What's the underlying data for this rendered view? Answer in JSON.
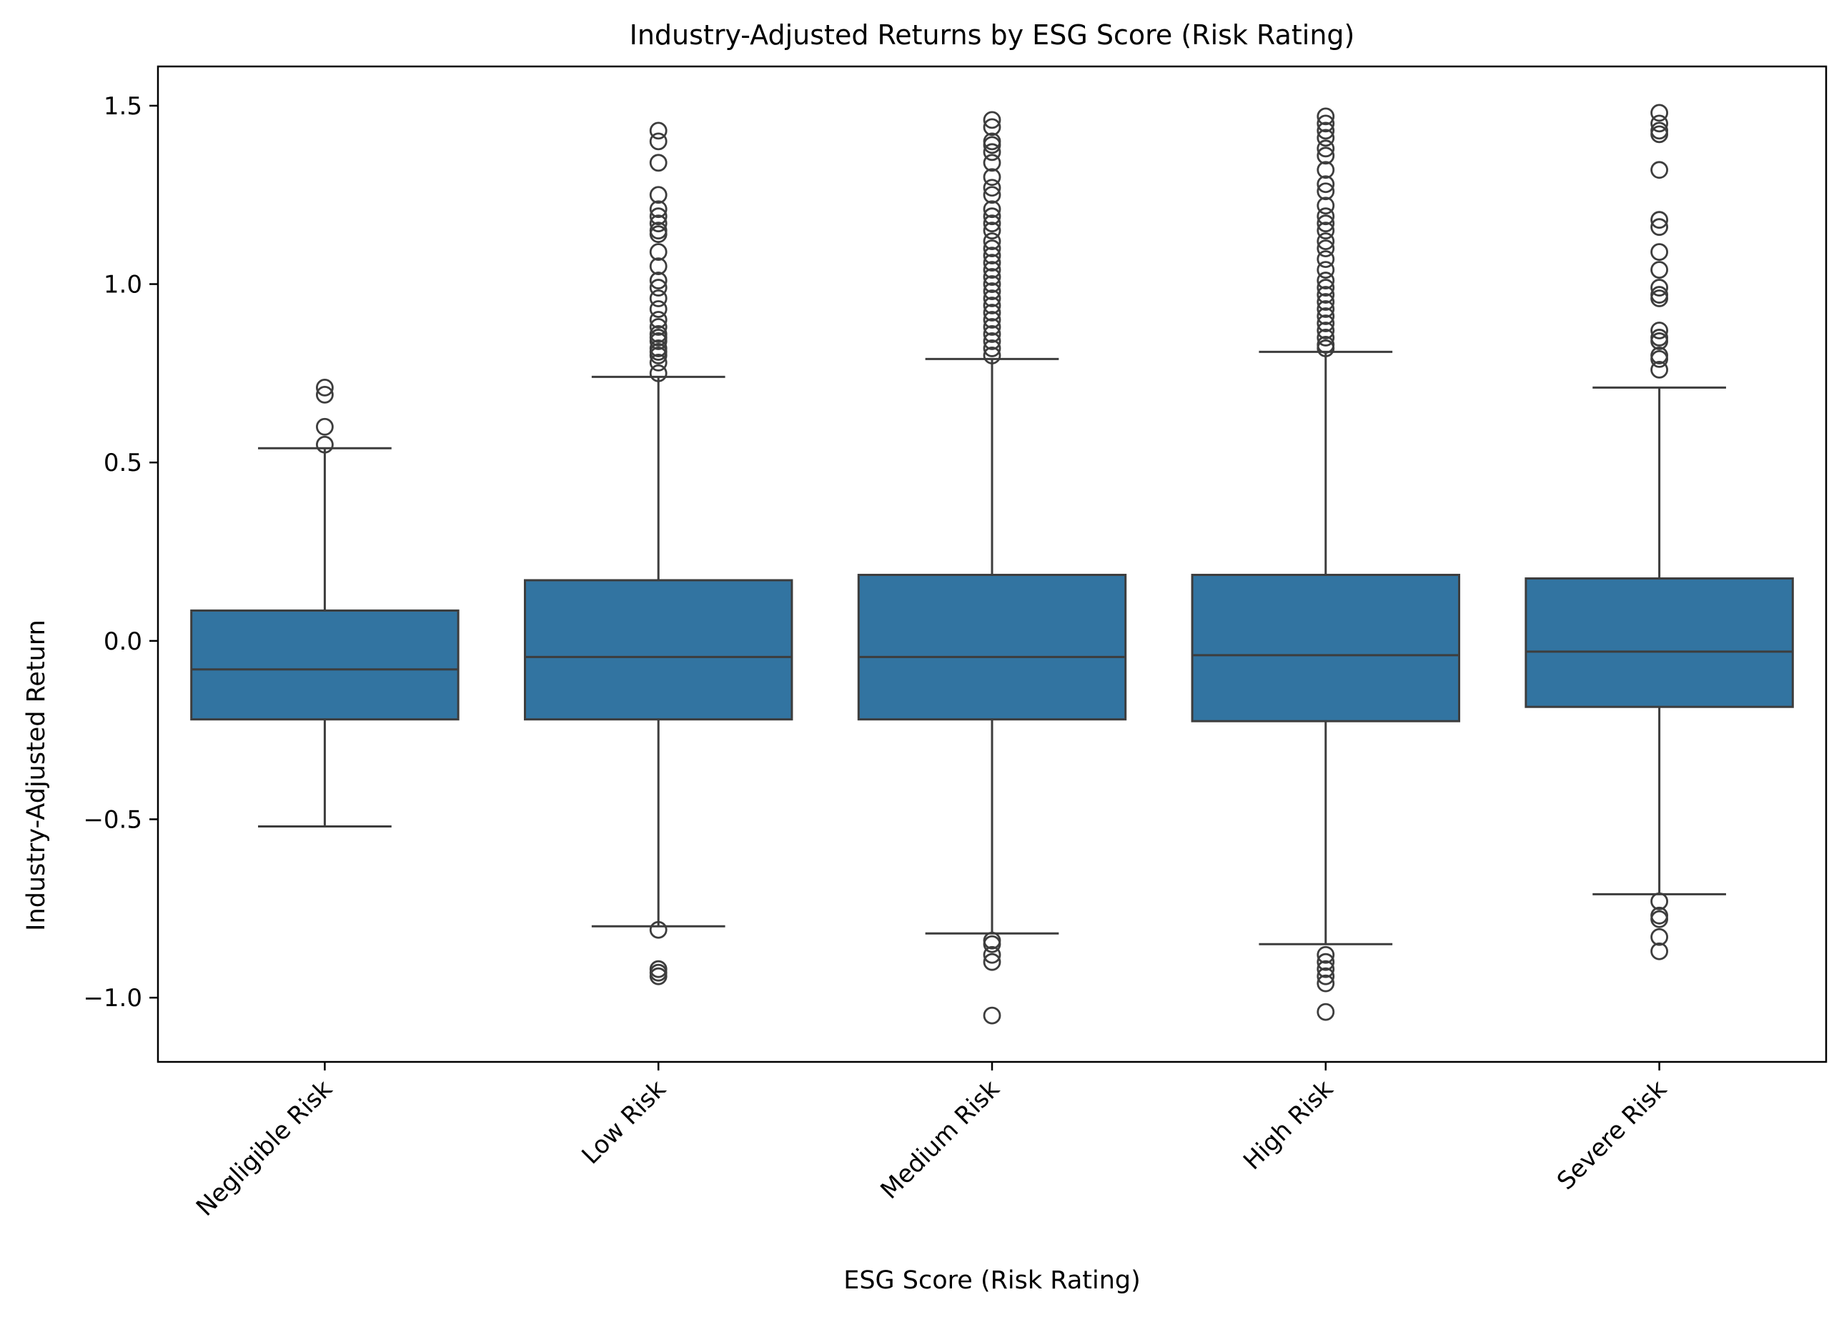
{
  "chart_data": {
    "type": "box",
    "title": "Industry-Adjusted Returns by ESG Score (Risk Rating)",
    "xlabel": "ESG Score (Risk Rating)",
    "ylabel": "Industry-Adjusted Return",
    "ylim": [
      -1.18,
      1.61
    ],
    "yticks": [
      1.5,
      1.0,
      0.5,
      0.0,
      -0.5,
      -1.0
    ],
    "ytick_labels": [
      "1.5",
      "1.0",
      "0.5",
      "0.0",
      "−0.5",
      "−1.0"
    ],
    "grid": false,
    "legend": "none",
    "colors": {
      "box_fill": "#3274a1",
      "line": "#3d3d3d"
    },
    "categories": [
      "Negligible Risk",
      "Low Risk",
      "Medium Risk",
      "High Risk",
      "Severe Risk"
    ],
    "boxes": [
      {
        "q1": -0.22,
        "median": -0.08,
        "q3": 0.085,
        "whisker_low": -0.52,
        "whisker_high": 0.54,
        "outliers": [
          0.71,
          0.69,
          0.6,
          0.55
        ]
      },
      {
        "q1": -0.22,
        "median": -0.045,
        "q3": 0.17,
        "whisker_low": -0.8,
        "whisker_high": 0.74,
        "outliers": [
          1.43,
          1.4,
          1.34,
          1.25,
          1.21,
          1.19,
          1.17,
          1.15,
          1.14,
          1.09,
          1.05,
          1.01,
          0.99,
          0.96,
          0.93,
          0.9,
          0.88,
          0.86,
          0.85,
          0.84,
          0.82,
          0.81,
          0.8,
          0.78,
          0.75,
          -0.81,
          -0.92,
          -0.93,
          -0.94
        ]
      },
      {
        "q1": -0.22,
        "median": -0.045,
        "q3": 0.185,
        "whisker_low": -0.82,
        "whisker_high": 0.79,
        "outliers": [
          1.46,
          1.44,
          1.4,
          1.39,
          1.37,
          1.34,
          1.3,
          1.27,
          1.25,
          1.21,
          1.19,
          1.17,
          1.15,
          1.12,
          1.1,
          1.08,
          1.06,
          1.04,
          1.02,
          1.0,
          0.98,
          0.96,
          0.94,
          0.92,
          0.9,
          0.88,
          0.86,
          0.84,
          0.82,
          0.8,
          -0.84,
          -0.85,
          -0.88,
          -0.9,
          -1.05
        ]
      },
      {
        "q1": -0.225,
        "median": -0.04,
        "q3": 0.185,
        "whisker_low": -0.85,
        "whisker_high": 0.81,
        "outliers": [
          1.47,
          1.45,
          1.43,
          1.41,
          1.38,
          1.36,
          1.32,
          1.28,
          1.26,
          1.22,
          1.19,
          1.17,
          1.15,
          1.12,
          1.1,
          1.07,
          1.04,
          1.01,
          0.99,
          0.97,
          0.95,
          0.93,
          0.91,
          0.89,
          0.87,
          0.85,
          0.83,
          0.82,
          -0.88,
          -0.9,
          -0.92,
          -0.94,
          -0.96,
          -1.04
        ]
      },
      {
        "q1": -0.185,
        "median": -0.03,
        "q3": 0.175,
        "whisker_low": -0.71,
        "whisker_high": 0.71,
        "outliers": [
          1.48,
          1.45,
          1.43,
          1.42,
          1.32,
          1.18,
          1.16,
          1.09,
          1.04,
          0.99,
          0.97,
          0.96,
          0.87,
          0.85,
          0.84,
          0.8,
          0.79,
          0.76,
          -0.73,
          -0.77,
          -0.78,
          -0.83,
          -0.87
        ]
      }
    ]
  }
}
